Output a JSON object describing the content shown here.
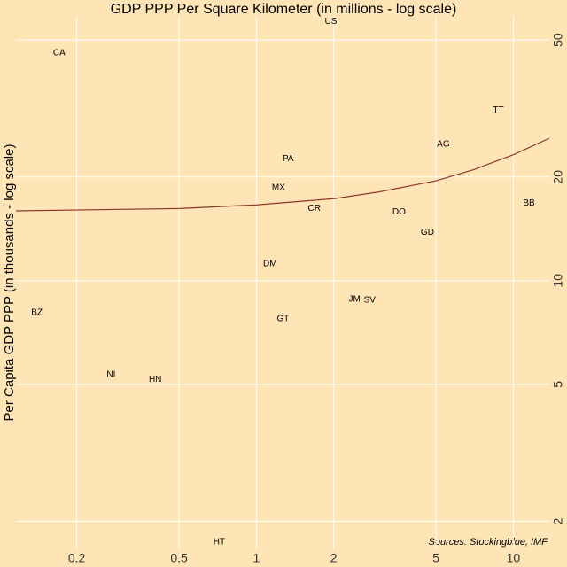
{
  "chart_data": {
    "type": "scatter",
    "title": "GDP PPP Per Square Kilometer (in millions - log scale)",
    "y_label": "Per Capita GDP PPP (in thousands - log scale)",
    "annotation": "Sources: Stockingblue, IMF",
    "labels": [
      "US",
      "CA",
      "TT",
      "AG",
      "PA",
      "MX",
      "BB",
      "CR",
      "DO",
      "GD",
      "DM",
      "JM",
      "SV",
      "BZ",
      "GT",
      "NI",
      "HN",
      "HT"
    ],
    "x": [
      1.95,
      0.171,
      8.74,
      5.34,
      1.33,
      1.22,
      11.5,
      1.68,
      3.59,
      4.63,
      1.13,
      2.41,
      2.76,
      0.14,
      1.27,
      0.272,
      0.404,
      0.717
    ],
    "values": [
      56.6,
      45.8,
      31.3,
      24.9,
      22.6,
      18.6,
      16.8,
      16.2,
      15.8,
      13.8,
      11.2,
      8.83,
      8.78,
      8.08,
      7.75,
      5.34,
      5.16,
      1.74
    ],
    "trend": {
      "color": "#8b3a2a",
      "x": [
        0.116,
        0.5,
        1,
        2,
        3,
        5,
        7,
        10,
        13.8
      ],
      "values": [
        15.95,
        16.2,
        16.6,
        17.3,
        18.1,
        19.5,
        21,
        23.2,
        25.9
      ]
    },
    "xlim": [
      0.116,
      13.8
    ],
    "ylim": [
      1.66,
      58.7
    ],
    "xticks": [
      0.2,
      0.5,
      1,
      2,
      5,
      10
    ],
    "yticks": [
      2,
      5,
      10,
      20,
      50
    ],
    "log_x": true,
    "log_y": true,
    "grid": true,
    "background": "#ffe4b5",
    "grid_color": "#ffffff"
  }
}
